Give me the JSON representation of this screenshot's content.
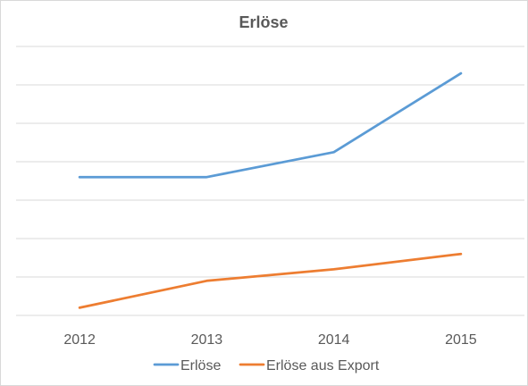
{
  "chart_data": {
    "type": "line",
    "title": "Erlöse",
    "categories": [
      "2012",
      "2013",
      "2014",
      "2015"
    ],
    "series": [
      {
        "name": "Erlöse",
        "values": [
          3.6,
          3.6,
          4.25,
          6.3
        ],
        "color": "#5b9bd5"
      },
      {
        "name": "Erlöse aus Export",
        "values": [
          0.2,
          0.9,
          1.2,
          1.6
        ],
        "color": "#ed7d31"
      }
    ],
    "ylim": [
      0,
      7
    ],
    "y_axis_labels_visible": false,
    "grid": true,
    "legend": "bottom"
  }
}
